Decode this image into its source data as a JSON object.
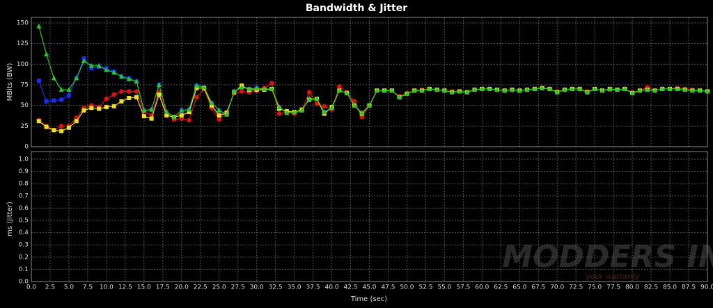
{
  "chart_data": {
    "type": "line",
    "title": "Bandwidth & Jitter",
    "xlabel": "Time (sec)",
    "ylabel": "MBits (BW)",
    "y2label": "ms (Jitter)",
    "watermark": "MODDERS INC.",
    "watermark_sub": "your warranty",
    "grid": true,
    "x": [
      1,
      2,
      3,
      4,
      5,
      6,
      7,
      8,
      9,
      10,
      11,
      12,
      13,
      14,
      15,
      16,
      17,
      18,
      19,
      20,
      21,
      22,
      23,
      24,
      25,
      26,
      27,
      28,
      29,
      30,
      31,
      32,
      33,
      34,
      35,
      36,
      37,
      38,
      39,
      40,
      41,
      42,
      43,
      44,
      45,
      46,
      47,
      48,
      49,
      50,
      51,
      52,
      53,
      54,
      55,
      56,
      57,
      58,
      59,
      60,
      61,
      62,
      63,
      64,
      65,
      66,
      67,
      68,
      69,
      70,
      71,
      72,
      73,
      74,
      75,
      76,
      77,
      78,
      79,
      80,
      81,
      82,
      83,
      84,
      85,
      86,
      87,
      88,
      89,
      90
    ],
    "series": [
      {
        "color": "#1a2cff",
        "marker": "square",
        "values": [
          80,
          55,
          56,
          57,
          62,
          83,
          107,
          95,
          97,
          95,
          91,
          85,
          83,
          79,
          44,
          45,
          75,
          42,
          36,
          44,
          45,
          74,
          72,
          53,
          44,
          39,
          67,
          72,
          70,
          71,
          70,
          70,
          48,
          41,
          42,
          44,
          58,
          58,
          42,
          47,
          68,
          65,
          50,
          41,
          50,
          68,
          68,
          68,
          60,
          64,
          68,
          68,
          70,
          69,
          68,
          66,
          67,
          66,
          69,
          70,
          70,
          69,
          68,
          69,
          68,
          69,
          70,
          71,
          70,
          66,
          69,
          70,
          70,
          66,
          70,
          68,
          70,
          69,
          70,
          65,
          68,
          69,
          68,
          70,
          70,
          70,
          69,
          68,
          68,
          67
        ]
      },
      {
        "color": "#e01010",
        "marker": "circle",
        "values": [
          32,
          25,
          20,
          25,
          25,
          35,
          47,
          50,
          48,
          58,
          63,
          67,
          67,
          67,
          43,
          38,
          66,
          40,
          33,
          34,
          32,
          60,
          70,
          47,
          33,
          42,
          65,
          67,
          66,
          68,
          71,
          77,
          40,
          42,
          40,
          44,
          66,
          52,
          49,
          45,
          73,
          66,
          55,
          36,
          50,
          68,
          68,
          68,
          61,
          65,
          68,
          69,
          70,
          69,
          68,
          67,
          67,
          66,
          69,
          70,
          70,
          69,
          68,
          69,
          68,
          69,
          70,
          71,
          70,
          67,
          69,
          70,
          70,
          67,
          70,
          68,
          69,
          69,
          70,
          66,
          68,
          72,
          68,
          70,
          70,
          71,
          70,
          69,
          68,
          67
        ]
      },
      {
        "color": "#f0e020",
        "marker": "square",
        "values": [
          31,
          24,
          20,
          19,
          23,
          31,
          44,
          47,
          46,
          48,
          49,
          55,
          59,
          60,
          37,
          34,
          63,
          38,
          36,
          38,
          42,
          71,
          71,
          50,
          38,
          41,
          66,
          74,
          69,
          69,
          69,
          70,
          46,
          43,
          42,
          45,
          57,
          58,
          40,
          48,
          68,
          65,
          50,
          40,
          50,
          68,
          68,
          68,
          60,
          64,
          68,
          68,
          70,
          69,
          68,
          66,
          67,
          66,
          69,
          70,
          70,
          69,
          68,
          69,
          68,
          69,
          70,
          71,
          70,
          66,
          69,
          70,
          70,
          66,
          70,
          68,
          70,
          69,
          70,
          65,
          68,
          69,
          68,
          70,
          70,
          70,
          69,
          68,
          68,
          67
        ]
      },
      {
        "color": "#22cc22",
        "marker": "triangle",
        "values": [
          146,
          112,
          83,
          69,
          69,
          83,
          104,
          98,
          98,
          93,
          90,
          85,
          82,
          79,
          44,
          45,
          75,
          42,
          36,
          44,
          45,
          74,
          72,
          53,
          44,
          39,
          67,
          72,
          70,
          71,
          70,
          70,
          48,
          41,
          42,
          44,
          58,
          58,
          42,
          47,
          68,
          65,
          50,
          41,
          50,
          68,
          68,
          68,
          60,
          64,
          68,
          68,
          70,
          69,
          68,
          66,
          67,
          66,
          69,
          70,
          70,
          69,
          68,
          69,
          68,
          69,
          70,
          71,
          70,
          66,
          69,
          70,
          70,
          66,
          70,
          68,
          70,
          69,
          70,
          65,
          68,
          69,
          68,
          70,
          70,
          70,
          69,
          68,
          68,
          67
        ]
      }
    ],
    "xlim": [
      0,
      90
    ],
    "xticks": [
      {
        "value": 0,
        "label": "0.0"
      },
      2.5,
      {
        "value": 5,
        "label": "5.0"
      },
      7.5,
      {
        "value": 10,
        "label": "10.0"
      },
      12.5,
      {
        "value": 15,
        "label": "15.0"
      },
      17.5,
      {
        "value": 20,
        "label": "20.0"
      },
      22.5,
      {
        "value": 25,
        "label": "25.0"
      },
      27.5,
      {
        "value": 30,
        "label": "30.0"
      },
      32.5,
      {
        "value": 35,
        "label": "35.0"
      },
      37.5,
      {
        "value": 40,
        "label": "40.0"
      },
      42.5,
      {
        "value": 45,
        "label": "45.0"
      },
      47.5,
      {
        "value": 50,
        "label": "50.0"
      },
      52.5,
      {
        "value": 55,
        "label": "55.0"
      },
      57.5,
      {
        "value": 60,
        "label": "60.0"
      },
      62.5,
      {
        "value": 65,
        "label": "65.0"
      },
      67.5,
      {
        "value": 70,
        "label": "70.0"
      },
      72.5,
      {
        "value": 75,
        "label": "75.0"
      },
      77.5,
      {
        "value": 80,
        "label": "80.0"
      },
      82.5,
      {
        "value": 85,
        "label": "85.0"
      },
      87.5,
      {
        "value": 90,
        "label": "90.0"
      }
    ],
    "ylim": [
      0,
      150
    ],
    "yticks": [
      0,
      25,
      50,
      75,
      100,
      125,
      150
    ],
    "y2lim": [
      0,
      1
    ],
    "y2ticks": [
      {
        "value": 0,
        "label": "0.0"
      },
      0.1,
      0.2,
      0.3,
      0.4,
      0.5,
      0.6,
      0.7,
      0.8,
      0.9,
      {
        "value": 1,
        "label": "1.0"
      }
    ]
  }
}
